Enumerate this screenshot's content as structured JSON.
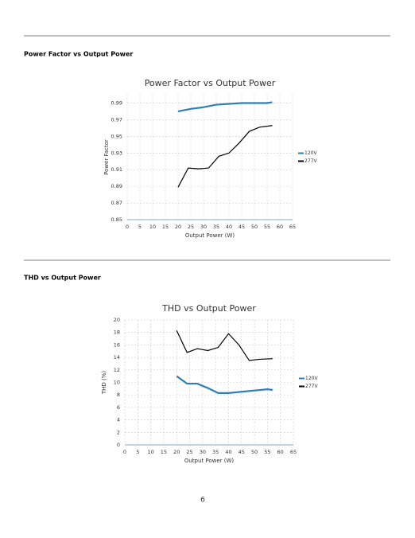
{
  "sections": [
    {
      "heading": "Power Factor vs Output Power"
    },
    {
      "heading": "THD vs Output Power"
    }
  ],
  "chart_data": [
    {
      "type": "line",
      "title": "Power Factor vs Output Power",
      "x_label": "Output Power (W)",
      "y_label": "Power Factor",
      "xlim": [
        0,
        65
      ],
      "xticks": [
        0,
        5,
        10,
        15,
        20,
        25,
        30,
        35,
        40,
        45,
        50,
        55,
        60,
        65
      ],
      "ylim": [
        0.85,
        1.0
      ],
      "yticks": [
        0.85,
        0.87,
        0.89,
        0.91,
        0.93,
        0.95,
        0.97,
        0.99
      ],
      "grid": true,
      "legend": "right",
      "series": [
        {
          "name": "120V",
          "color": "#2f7fb5",
          "x": [
            20,
            25,
            30,
            35,
            40,
            45,
            50,
            55,
            57
          ],
          "values": [
            0.98,
            0.983,
            0.985,
            0.988,
            0.989,
            0.99,
            0.99,
            0.99,
            0.991
          ]
        },
        {
          "name": "277V",
          "color": "#000000",
          "x": [
            20,
            24,
            28,
            32,
            36,
            40,
            44,
            48,
            52,
            57
          ],
          "values": [
            0.889,
            0.912,
            0.911,
            0.912,
            0.926,
            0.93,
            0.942,
            0.956,
            0.961,
            0.963
          ]
        }
      ]
    },
    {
      "type": "line",
      "title": "THD vs Output Power",
      "x_label": "Output Power (W)",
      "y_label": "THD (%)",
      "xlim": [
        0,
        65
      ],
      "xticks": [
        0,
        5,
        10,
        15,
        20,
        25,
        30,
        35,
        40,
        45,
        50,
        55,
        60,
        65
      ],
      "ylim": [
        0,
        20
      ],
      "yticks": [
        0,
        2,
        4,
        6,
        8,
        10,
        12,
        14,
        16,
        18,
        20
      ],
      "grid": true,
      "legend": "right",
      "series": [
        {
          "name": "120V",
          "color": "#2f7fb5",
          "x": [
            20,
            24,
            28,
            32,
            36,
            40,
            45,
            50,
            55,
            57
          ],
          "values": [
            11,
            9.8,
            9.8,
            9.1,
            8.3,
            8.3,
            8.5,
            8.7,
            8.9,
            8.8
          ]
        },
        {
          "name": "277V",
          "color": "#000000",
          "x": [
            20,
            24,
            28,
            32,
            36,
            40,
            44,
            48,
            52,
            57
          ],
          "values": [
            18.3,
            14.8,
            15.4,
            15.1,
            15.6,
            17.8,
            16,
            13.5,
            13.7,
            13.8
          ]
        }
      ]
    }
  ],
  "page_number": 6
}
